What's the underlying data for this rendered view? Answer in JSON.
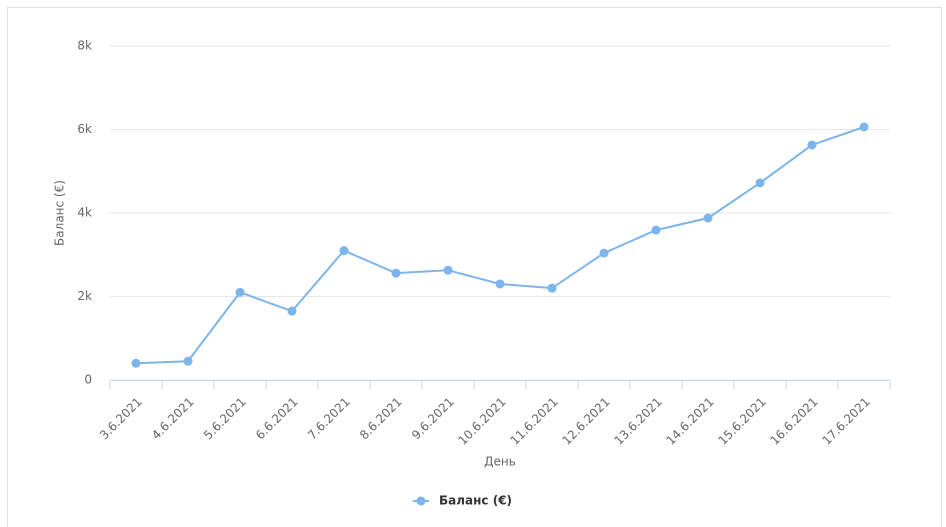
{
  "chart_data": {
    "type": "line",
    "categories": [
      "3.6.2021",
      "4.6.2021",
      "5.6.2021",
      "6.6.2021",
      "7.6.2021",
      "8.6.2021",
      "9.6.2021",
      "10.6.2021",
      "11.6.2021",
      "12.6.2021",
      "13.6.2021",
      "14.6.2021",
      "15.6.2021",
      "16.6.2021",
      "17.6.2021"
    ],
    "series": [
      {
        "name": "Баланс (€)",
        "color": "#7cb5ec",
        "values": [
          400,
          450,
          2100,
          1650,
          3100,
          2560,
          2630,
          2300,
          2200,
          3040,
          3590,
          3880,
          4720,
          5630,
          6060
        ]
      }
    ],
    "ylim": [
      0,
      8000
    ],
    "yticks": [
      0,
      {
        "value": 2000,
        "label": "2k"
      },
      {
        "value": 4000,
        "label": "4k"
      },
      {
        "value": 6000,
        "label": "6k"
      },
      {
        "value": 8000,
        "label": "8k"
      }
    ],
    "ylabel": "Баланс (€)",
    "xlabel": "День",
    "grid": true,
    "legend": "bottom"
  }
}
